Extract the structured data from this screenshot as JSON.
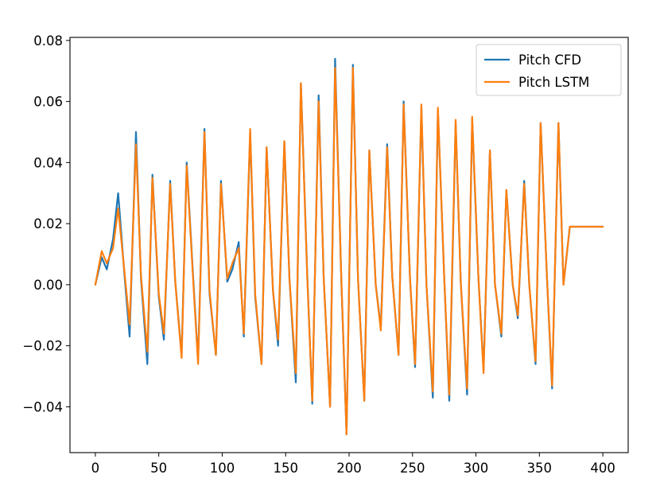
{
  "chart_data": {
    "type": "line",
    "title": "",
    "xlabel": "",
    "ylabel": "",
    "xlim": [
      -20,
      420
    ],
    "ylim": [
      -0.055,
      0.081
    ],
    "xticks": [
      0,
      50,
      100,
      150,
      200,
      250,
      300,
      350,
      400
    ],
    "xtick_labels": [
      "0",
      "50",
      "100",
      "150",
      "200",
      "250",
      "300",
      "350",
      "400"
    ],
    "yticks": [
      -0.04,
      -0.02,
      0.0,
      0.02,
      0.04,
      0.06,
      0.08
    ],
    "ytick_labels": [
      "−0.04",
      "−0.02",
      "0.00",
      "0.02",
      "0.04",
      "0.06",
      "0.08"
    ],
    "grid": false,
    "legend_position": "top-right",
    "series": [
      {
        "name": "Pitch CFD",
        "color": "#1f77b4",
        "x": [
          0,
          5,
          9,
          14,
          18,
          23,
          27,
          32,
          36,
          41,
          45,
          50,
          54,
          59,
          63,
          68,
          72,
          77,
          81,
          86,
          90,
          95,
          99,
          104,
          108,
          113,
          117,
          122,
          126,
          131,
          135,
          140,
          144,
          149,
          153,
          158,
          162,
          167,
          171,
          176,
          180,
          185,
          189,
          194,
          198,
          203,
          207,
          212,
          216,
          221,
          225,
          230,
          234,
          239,
          243,
          248,
          252,
          257,
          261,
          266,
          270,
          275,
          279,
          284,
          288,
          293,
          297,
          302,
          306,
          311,
          315,
          320,
          324,
          329,
          333,
          338,
          342,
          347,
          351,
          356,
          360,
          365,
          369,
          374,
          378,
          383,
          387,
          392,
          396,
          400
        ],
        "values": [
          0.0,
          0.009,
          0.005,
          0.015,
          0.03,
          0.003,
          -0.017,
          0.05,
          0.002,
          -0.026,
          0.036,
          -0.004,
          -0.018,
          0.034,
          0.001,
          -0.023,
          0.04,
          0.003,
          -0.025,
          0.051,
          -0.003,
          -0.023,
          0.034,
          0.001,
          0.005,
          0.014,
          -0.017,
          0.05,
          -0.004,
          -0.026,
          0.045,
          -0.002,
          -0.02,
          0.047,
          0.002,
          -0.032,
          0.066,
          0.004,
          -0.039,
          0.062,
          0.002,
          -0.04,
          0.074,
          0.0,
          -0.049,
          0.072,
          0.002,
          -0.038,
          0.044,
          0.0,
          -0.014,
          0.046,
          0.003,
          -0.023,
          0.06,
          0.002,
          -0.027,
          0.058,
          0.0,
          -0.037,
          0.057,
          0.002,
          -0.038,
          0.053,
          0.001,
          -0.036,
          0.054,
          0.002,
          -0.028,
          0.044,
          0.0,
          -0.017,
          0.031,
          0.0,
          -0.011,
          0.034,
          0.0,
          -0.026,
          0.053,
          0.002,
          -0.034,
          0.053,
          0.0,
          0.019,
          0.019,
          0.019,
          0.019,
          0.019,
          0.019,
          0.019
        ]
      },
      {
        "name": "Pitch LSTM",
        "color": "#ff7f0e",
        "x": [
          0,
          5,
          9,
          14,
          18,
          23,
          27,
          32,
          36,
          41,
          45,
          50,
          54,
          59,
          63,
          68,
          72,
          77,
          81,
          86,
          90,
          95,
          99,
          104,
          108,
          113,
          117,
          122,
          126,
          131,
          135,
          140,
          144,
          149,
          153,
          158,
          162,
          167,
          171,
          176,
          180,
          185,
          189,
          194,
          198,
          203,
          207,
          212,
          216,
          221,
          225,
          230,
          234,
          239,
          243,
          248,
          252,
          257,
          261,
          266,
          270,
          275,
          279,
          284,
          288,
          293,
          297,
          302,
          306,
          311,
          315,
          320,
          324,
          329,
          333,
          338,
          342,
          347,
          351,
          356,
          360,
          365,
          369,
          374,
          378,
          383,
          387,
          392,
          396,
          400
        ],
        "values": [
          0.0,
          0.011,
          0.007,
          0.012,
          0.025,
          0.004,
          -0.013,
          0.046,
          0.003,
          -0.022,
          0.035,
          -0.003,
          -0.016,
          0.033,
          0.001,
          -0.024,
          0.039,
          0.002,
          -0.026,
          0.05,
          -0.002,
          -0.023,
          0.033,
          0.002,
          0.007,
          0.012,
          -0.016,
          0.051,
          -0.003,
          -0.026,
          0.045,
          -0.002,
          -0.018,
          0.047,
          0.002,
          -0.029,
          0.066,
          0.003,
          -0.038,
          0.06,
          0.002,
          -0.04,
          0.071,
          0.001,
          -0.049,
          0.071,
          0.002,
          -0.038,
          0.044,
          0.0,
          -0.015,
          0.045,
          0.003,
          -0.023,
          0.059,
          0.002,
          -0.026,
          0.059,
          0.0,
          -0.035,
          0.058,
          0.002,
          -0.036,
          0.054,
          0.001,
          -0.034,
          0.055,
          0.002,
          -0.029,
          0.044,
          0.0,
          -0.016,
          0.031,
          0.0,
          -0.01,
          0.033,
          0.0,
          -0.025,
          0.053,
          0.002,
          -0.033,
          0.053,
          0.0,
          0.019,
          0.019,
          0.019,
          0.019,
          0.019,
          0.019,
          0.019
        ]
      }
    ]
  }
}
